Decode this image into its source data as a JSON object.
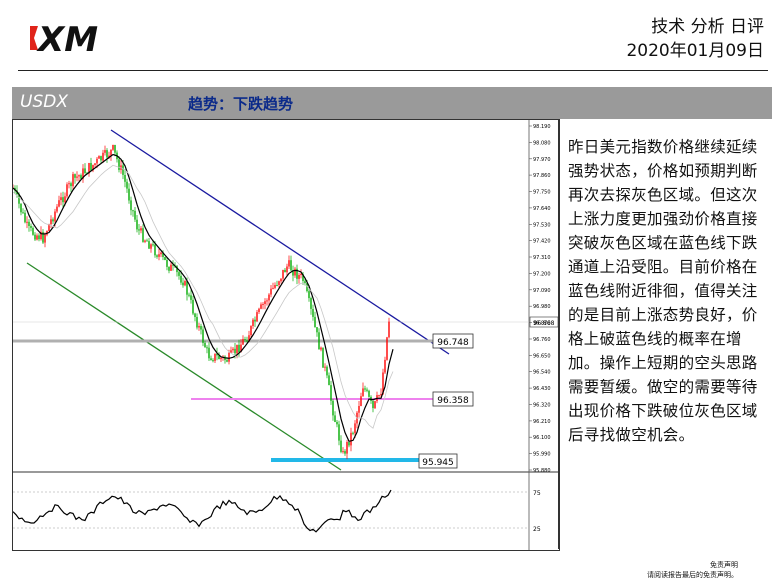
{
  "header": {
    "logo_text": "XM",
    "title": "技术 分析 日评",
    "date": "2020年01月09日"
  },
  "band": {
    "symbol": "USDX",
    "trend": "趋势：下跌趋势"
  },
  "commentary": "昨日美元指数价格继续延续强势状态，价格如预期判断再次去探灰色区域。但这次上涨力度更加强劲价格直接突破灰色区域在蓝色线下跌通道上沿受阻。目前价格在蓝色线附近徘徊，值得关注的是目前上涨态势良好，价格上破蓝色线的概率在增加。操作上短期的空头思路需要暂缓。做空的需要等待出现价格下跌破位灰色区域后寻找做空机会。",
  "footer": {
    "disclaimer_title": "免责声明",
    "disclaimer_text": "请阅读报告最后的免责声明。"
  },
  "chart_data": {
    "type": "line",
    "symbol": "USDX",
    "y_axis_ticks": [
      "98.190",
      "98.080",
      "97.970",
      "97.860",
      "97.750",
      "97.640",
      "97.530",
      "97.420",
      "97.310",
      "97.200",
      "97.090",
      "96.980",
      "96.870",
      "96.760",
      "96.650",
      "96.540",
      "96.430",
      "96.320",
      "96.210",
      "96.100",
      "95.990",
      "95.880"
    ],
    "current_price": "96.868",
    "levels": [
      {
        "label": "96.748",
        "color": "#b0b0b0"
      },
      {
        "label": "96.358",
        "color": "#ee82ee"
      },
      {
        "label": "95.945",
        "color": "#22b8e8"
      }
    ],
    "oscillator_ticks": [
      "75",
      "25"
    ],
    "colors": {
      "up": "#ff0000",
      "down": "#00aa00",
      "channel_upper": "#1a1aa0",
      "channel_lower": "#2a8a2a",
      "ma": "#000000"
    }
  }
}
